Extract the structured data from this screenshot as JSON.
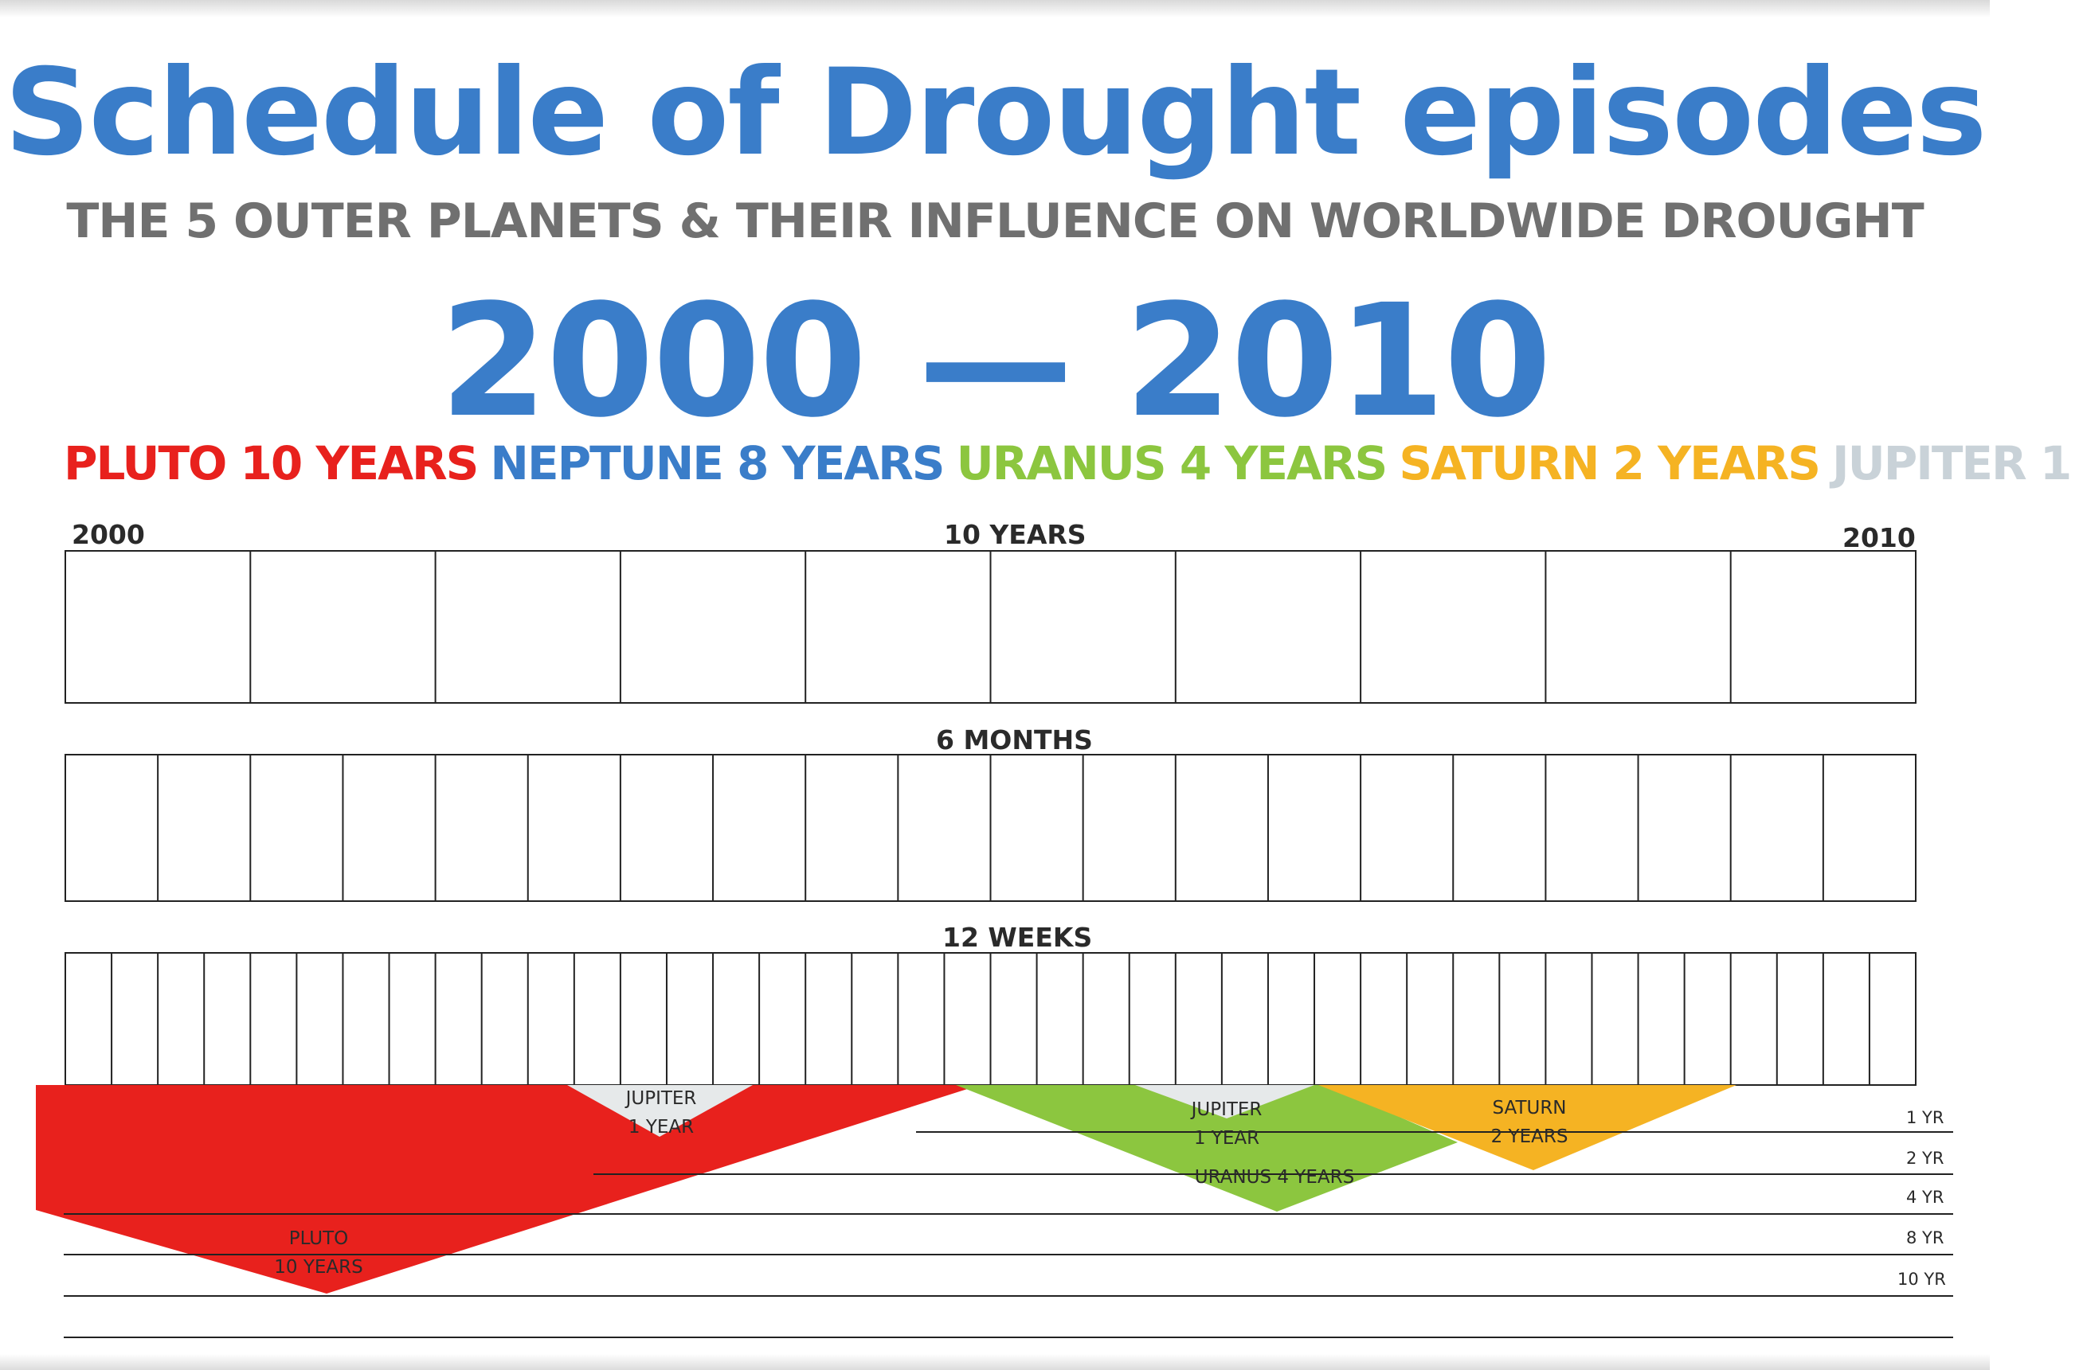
{
  "title": "Schedule of Drought episodes",
  "subtitle": "THE 5 OUTER PLANETS & THEIR INFLUENCE ON WORLDWIDE DROUGHT",
  "range": "2000 — 2010",
  "legend": [
    {
      "text": "PLUTO 10 YEARS",
      "color": "#e8211d"
    },
    {
      "text": "NEPTUNE 8 YEARS",
      "color": "#3a7dc9"
    },
    {
      "text": "URANUS 4 YEARS",
      "color": "#8cc63f"
    },
    {
      "text": "SATURN 2 YEARS",
      "color": "#f5b323"
    },
    {
      "text": "JUPITER 1",
      "color": "#c9d2d8"
    }
  ],
  "grids": {
    "ten_years": {
      "label": "10  YEARS",
      "start": "2000",
      "end": "2010",
      "cells": 10
    },
    "six_months": {
      "label": "6 MONTHS",
      "cells": 20
    },
    "twelve_weeks": {
      "label": "12 WEEKS",
      "cells": 40
    }
  },
  "episodes": {
    "pluto": {
      "line1": "PLUTO",
      "line2": "10 YEARS",
      "color": "#e8211d"
    },
    "jupiter_a": {
      "line1": "JUPITER",
      "line2": "1 YEAR",
      "color": "#e6e9ea"
    },
    "jupiter_b": {
      "line1": "JUPITER",
      "line2": "1 YEAR",
      "color": "#e6e9ea"
    },
    "uranus": {
      "line1": "URANUS 4 YEARS",
      "color": "#8cc63f"
    },
    "saturn": {
      "line1": "SATURN",
      "line2": "2 YEARS",
      "color": "#f5b323"
    }
  },
  "scale": [
    "1 YR",
    "2 YR",
    "4 YR",
    "8 YR",
    "10 YR"
  ]
}
